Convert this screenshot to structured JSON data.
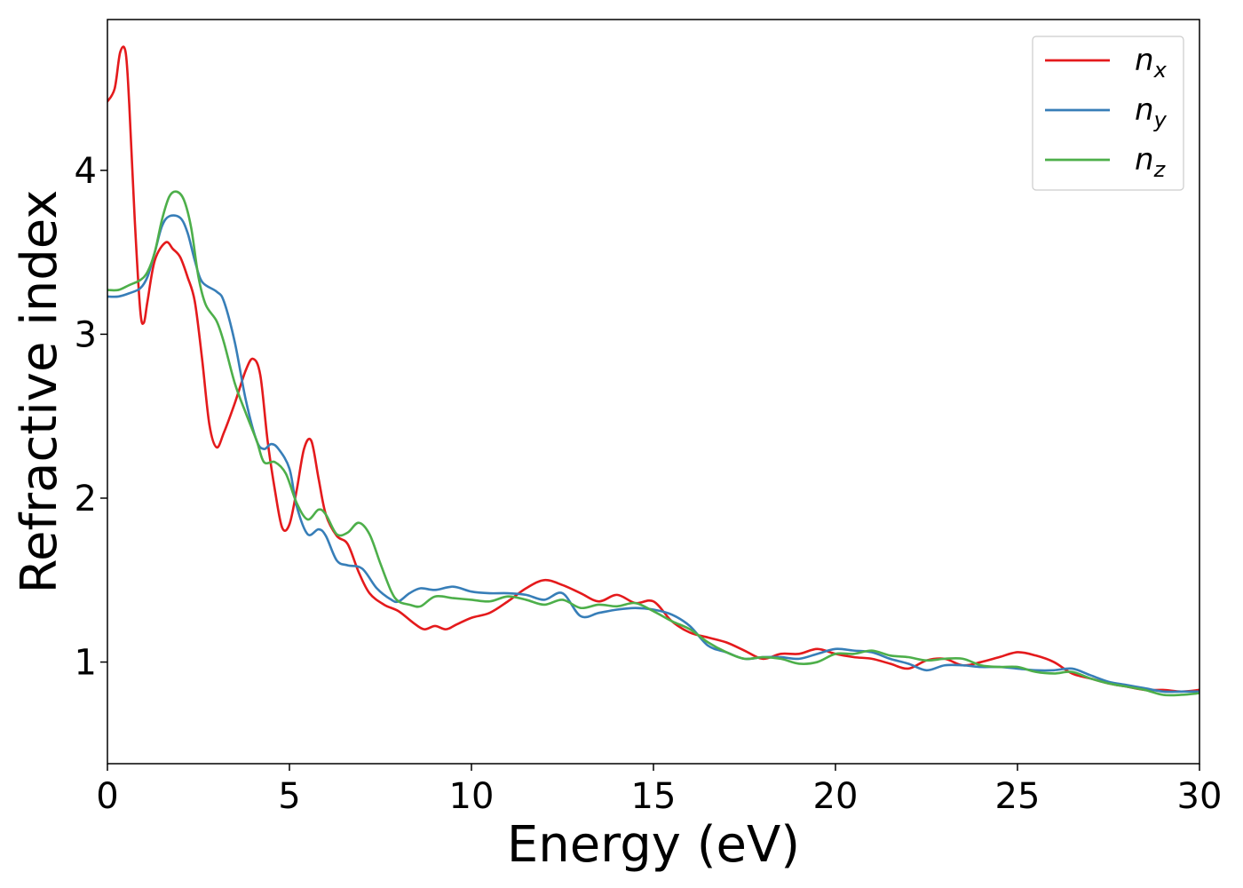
{
  "chart_data": {
    "type": "line",
    "title": "",
    "xlabel": "Energy (eV)",
    "ylabel": "Refractive index",
    "xlim": [
      0,
      30
    ],
    "ylim": [
      0.38,
      4.92
    ],
    "xticks": [
      0,
      5,
      10,
      15,
      20,
      25,
      30
    ],
    "xtick_labels": [
      "0",
      "5",
      "10",
      "15",
      "20",
      "25",
      "30"
    ],
    "yticks": [
      1,
      2,
      3,
      4
    ],
    "ytick_labels": [
      "1",
      "2",
      "3",
      "4"
    ],
    "grid": false,
    "legend_position": "top-right",
    "series": [
      {
        "name": "n",
        "subscript": "x",
        "color": "#e41a1c",
        "points": [
          [
            0,
            4.42
          ],
          [
            0.2,
            4.5
          ],
          [
            0.35,
            4.72
          ],
          [
            0.5,
            4.72
          ],
          [
            0.6,
            4.4
          ],
          [
            0.75,
            3.7
          ],
          [
            0.9,
            3.15
          ],
          [
            1.0,
            3.07
          ],
          [
            1.1,
            3.2
          ],
          [
            1.3,
            3.45
          ],
          [
            1.6,
            3.56
          ],
          [
            1.8,
            3.52
          ],
          [
            2.0,
            3.47
          ],
          [
            2.2,
            3.35
          ],
          [
            2.4,
            3.2
          ],
          [
            2.6,
            2.85
          ],
          [
            2.8,
            2.45
          ],
          [
            3.0,
            2.31
          ],
          [
            3.2,
            2.4
          ],
          [
            3.5,
            2.58
          ],
          [
            3.8,
            2.78
          ],
          [
            4.0,
            2.85
          ],
          [
            4.2,
            2.75
          ],
          [
            4.4,
            2.35
          ],
          [
            4.6,
            2.05
          ],
          [
            4.8,
            1.82
          ],
          [
            5.0,
            1.84
          ],
          [
            5.2,
            2.05
          ],
          [
            5.4,
            2.3
          ],
          [
            5.6,
            2.35
          ],
          [
            5.8,
            2.12
          ],
          [
            6.0,
            1.9
          ],
          [
            6.3,
            1.77
          ],
          [
            6.6,
            1.72
          ],
          [
            6.9,
            1.55
          ],
          [
            7.2,
            1.42
          ],
          [
            7.6,
            1.35
          ],
          [
            8.0,
            1.31
          ],
          [
            8.4,
            1.24
          ],
          [
            8.7,
            1.2
          ],
          [
            9.0,
            1.22
          ],
          [
            9.3,
            1.2
          ],
          [
            9.6,
            1.23
          ],
          [
            10.0,
            1.27
          ],
          [
            10.5,
            1.3
          ],
          [
            11.0,
            1.37
          ],
          [
            11.5,
            1.45
          ],
          [
            12.0,
            1.5
          ],
          [
            12.5,
            1.47
          ],
          [
            13.0,
            1.42
          ],
          [
            13.5,
            1.37
          ],
          [
            14.0,
            1.41
          ],
          [
            14.5,
            1.36
          ],
          [
            15.0,
            1.37
          ],
          [
            15.5,
            1.25
          ],
          [
            16.0,
            1.18
          ],
          [
            16.5,
            1.15
          ],
          [
            17.0,
            1.12
          ],
          [
            17.5,
            1.07
          ],
          [
            18.0,
            1.02
          ],
          [
            18.5,
            1.05
          ],
          [
            19.0,
            1.05
          ],
          [
            19.5,
            1.08
          ],
          [
            20.0,
            1.05
          ],
          [
            20.5,
            1.03
          ],
          [
            21.0,
            1.02
          ],
          [
            21.5,
            0.99
          ],
          [
            22.0,
            0.96
          ],
          [
            22.5,
            1.01
          ],
          [
            23.0,
            1.02
          ],
          [
            23.5,
            0.98
          ],
          [
            24.0,
            1.0
          ],
          [
            24.5,
            1.03
          ],
          [
            25.0,
            1.06
          ],
          [
            25.5,
            1.04
          ],
          [
            26.0,
            1.0
          ],
          [
            26.5,
            0.93
          ],
          [
            27.0,
            0.9
          ],
          [
            27.5,
            0.87
          ],
          [
            28.0,
            0.85
          ],
          [
            28.5,
            0.83
          ],
          [
            29.0,
            0.83
          ],
          [
            29.5,
            0.82
          ],
          [
            30.0,
            0.83
          ]
        ]
      },
      {
        "name": "n",
        "subscript": "y",
        "color": "#377eb8",
        "points": [
          [
            0,
            3.23
          ],
          [
            0.3,
            3.23
          ],
          [
            0.6,
            3.25
          ],
          [
            0.9,
            3.28
          ],
          [
            1.1,
            3.35
          ],
          [
            1.3,
            3.5
          ],
          [
            1.5,
            3.66
          ],
          [
            1.7,
            3.72
          ],
          [
            2.0,
            3.71
          ],
          [
            2.2,
            3.62
          ],
          [
            2.4,
            3.45
          ],
          [
            2.6,
            3.32
          ],
          [
            3.0,
            3.26
          ],
          [
            3.2,
            3.2
          ],
          [
            3.5,
            2.95
          ],
          [
            3.8,
            2.6
          ],
          [
            4.1,
            2.35
          ],
          [
            4.3,
            2.3
          ],
          [
            4.5,
            2.33
          ],
          [
            4.7,
            2.3
          ],
          [
            5.0,
            2.18
          ],
          [
            5.2,
            1.95
          ],
          [
            5.5,
            1.78
          ],
          [
            5.8,
            1.81
          ],
          [
            6.0,
            1.77
          ],
          [
            6.3,
            1.62
          ],
          [
            6.6,
            1.59
          ],
          [
            7.0,
            1.57
          ],
          [
            7.4,
            1.45
          ],
          [
            7.8,
            1.38
          ],
          [
            8.0,
            1.37
          ],
          [
            8.3,
            1.42
          ],
          [
            8.6,
            1.45
          ],
          [
            9.0,
            1.44
          ],
          [
            9.5,
            1.46
          ],
          [
            10.0,
            1.43
          ],
          [
            10.5,
            1.42
          ],
          [
            11.0,
            1.42
          ],
          [
            11.5,
            1.41
          ],
          [
            12.0,
            1.38
          ],
          [
            12.5,
            1.42
          ],
          [
            13.0,
            1.28
          ],
          [
            13.5,
            1.3
          ],
          [
            14.0,
            1.32
          ],
          [
            14.5,
            1.33
          ],
          [
            15.0,
            1.32
          ],
          [
            15.5,
            1.29
          ],
          [
            16.0,
            1.22
          ],
          [
            16.5,
            1.1
          ],
          [
            17.0,
            1.06
          ],
          [
            17.5,
            1.02
          ],
          [
            18.0,
            1.03
          ],
          [
            18.5,
            1.03
          ],
          [
            19.0,
            1.02
          ],
          [
            19.5,
            1.05
          ],
          [
            20.0,
            1.08
          ],
          [
            20.5,
            1.07
          ],
          [
            21.0,
            1.06
          ],
          [
            21.5,
            1.02
          ],
          [
            22.0,
            0.99
          ],
          [
            22.5,
            0.95
          ],
          [
            23.0,
            0.98
          ],
          [
            23.5,
            0.98
          ],
          [
            24.0,
            0.97
          ],
          [
            24.5,
            0.97
          ],
          [
            25.0,
            0.96
          ],
          [
            25.5,
            0.95
          ],
          [
            26.0,
            0.95
          ],
          [
            26.5,
            0.96
          ],
          [
            27.0,
            0.92
          ],
          [
            27.5,
            0.88
          ],
          [
            28.0,
            0.86
          ],
          [
            28.5,
            0.84
          ],
          [
            29.0,
            0.82
          ],
          [
            29.5,
            0.82
          ],
          [
            30.0,
            0.82
          ]
        ]
      },
      {
        "name": "n",
        "subscript": "z",
        "color": "#4daf4a",
        "points": [
          [
            0,
            3.27
          ],
          [
            0.3,
            3.27
          ],
          [
            0.6,
            3.3
          ],
          [
            0.9,
            3.33
          ],
          [
            1.1,
            3.38
          ],
          [
            1.3,
            3.5
          ],
          [
            1.5,
            3.7
          ],
          [
            1.7,
            3.84
          ],
          [
            1.9,
            3.87
          ],
          [
            2.1,
            3.82
          ],
          [
            2.3,
            3.65
          ],
          [
            2.5,
            3.35
          ],
          [
            2.7,
            3.18
          ],
          [
            3.0,
            3.08
          ],
          [
            3.2,
            2.95
          ],
          [
            3.5,
            2.7
          ],
          [
            3.8,
            2.52
          ],
          [
            4.1,
            2.35
          ],
          [
            4.3,
            2.22
          ],
          [
            4.6,
            2.22
          ],
          [
            4.9,
            2.15
          ],
          [
            5.2,
            1.97
          ],
          [
            5.5,
            1.87
          ],
          [
            5.8,
            1.93
          ],
          [
            6.0,
            1.9
          ],
          [
            6.3,
            1.78
          ],
          [
            6.6,
            1.79
          ],
          [
            6.9,
            1.85
          ],
          [
            7.2,
            1.78
          ],
          [
            7.5,
            1.6
          ],
          [
            7.8,
            1.43
          ],
          [
            8.0,
            1.37
          ],
          [
            8.3,
            1.35
          ],
          [
            8.6,
            1.34
          ],
          [
            9.0,
            1.4
          ],
          [
            9.5,
            1.39
          ],
          [
            10.0,
            1.38
          ],
          [
            10.5,
            1.37
          ],
          [
            11.0,
            1.4
          ],
          [
            11.5,
            1.38
          ],
          [
            12.0,
            1.35
          ],
          [
            12.5,
            1.38
          ],
          [
            13.0,
            1.33
          ],
          [
            13.5,
            1.35
          ],
          [
            14.0,
            1.34
          ],
          [
            14.5,
            1.36
          ],
          [
            15.0,
            1.31
          ],
          [
            15.5,
            1.25
          ],
          [
            16.0,
            1.2
          ],
          [
            16.5,
            1.12
          ],
          [
            17.0,
            1.06
          ],
          [
            17.5,
            1.02
          ],
          [
            18.0,
            1.03
          ],
          [
            18.5,
            1.02
          ],
          [
            19.0,
            0.99
          ],
          [
            19.5,
            1.0
          ],
          [
            20.0,
            1.05
          ],
          [
            20.5,
            1.05
          ],
          [
            21.0,
            1.07
          ],
          [
            21.5,
            1.04
          ],
          [
            22.0,
            1.03
          ],
          [
            22.5,
            1.01
          ],
          [
            23.0,
            1.02
          ],
          [
            23.5,
            1.02
          ],
          [
            24.0,
            0.98
          ],
          [
            24.5,
            0.97
          ],
          [
            25.0,
            0.97
          ],
          [
            25.5,
            0.94
          ],
          [
            26.0,
            0.93
          ],
          [
            26.5,
            0.94
          ],
          [
            27.0,
            0.9
          ],
          [
            27.5,
            0.87
          ],
          [
            28.0,
            0.85
          ],
          [
            28.5,
            0.83
          ],
          [
            29.0,
            0.8
          ],
          [
            29.5,
            0.8
          ],
          [
            30.0,
            0.81
          ]
        ]
      }
    ]
  }
}
